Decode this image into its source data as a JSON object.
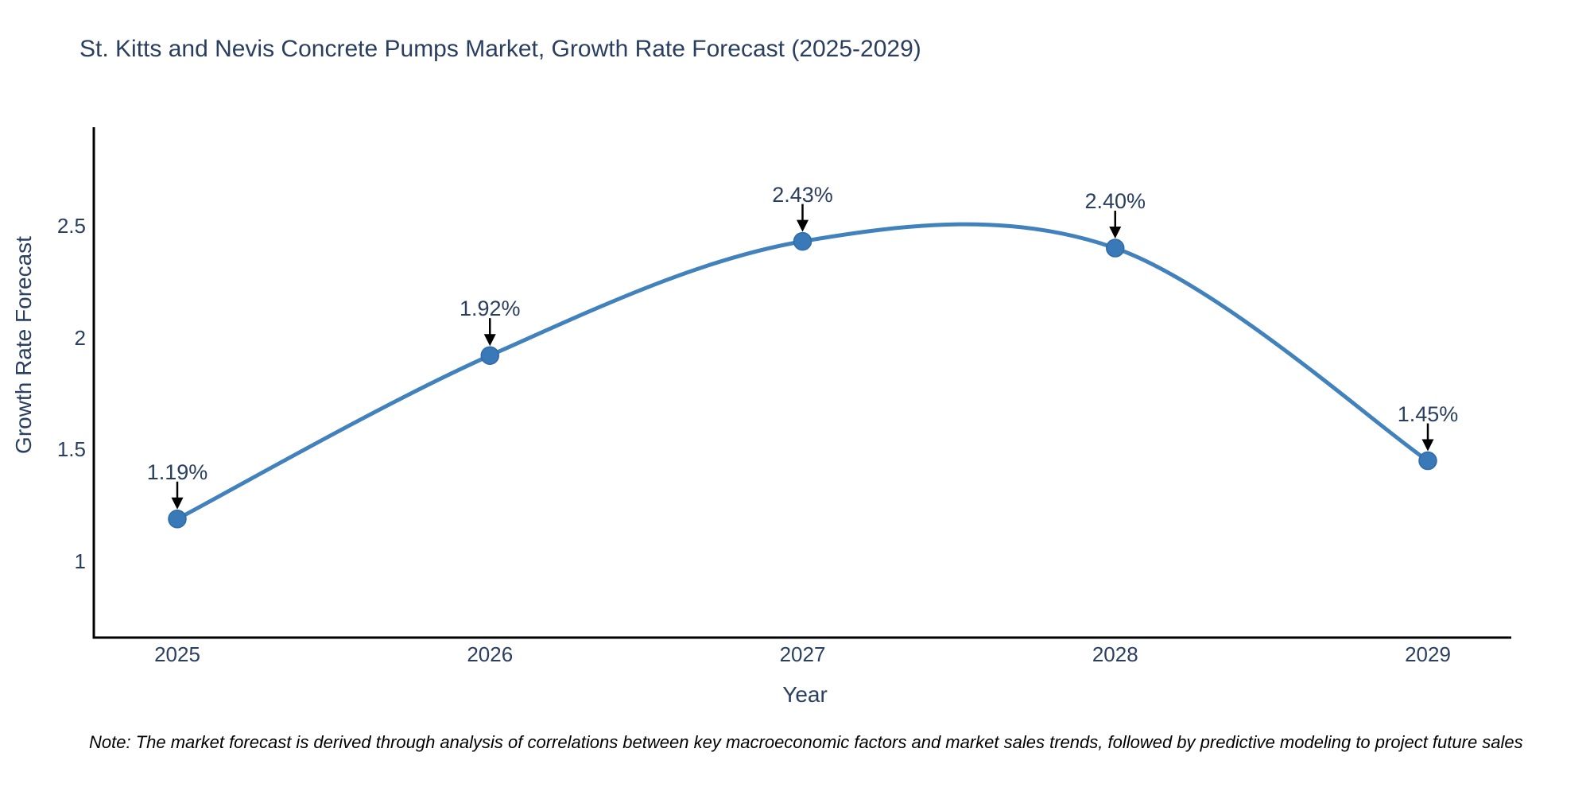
{
  "chart_data": {
    "type": "line",
    "title": "St. Kitts and Nevis Concrete Pumps Market, Growth Rate Forecast (2025-2029)",
    "xlabel": "Year",
    "ylabel": "Growth Rate Forecast",
    "x": [
      "2025",
      "2026",
      "2027",
      "2028",
      "2029"
    ],
    "values": [
      1.19,
      1.92,
      2.43,
      2.4,
      1.45
    ],
    "point_labels": [
      "1.19%",
      "1.92%",
      "2.43%",
      "2.40%",
      "1.45%"
    ],
    "yticks": [
      "1",
      "1.5",
      "2",
      "2.5"
    ],
    "ytick_values": [
      1,
      1.5,
      2,
      2.5
    ],
    "ylim": [
      0.66,
      2.94
    ],
    "line_shape": "spline",
    "grid": false,
    "legend": "none",
    "colors": {
      "line": "#4182bd",
      "marker": "#3a79b8",
      "marker_edge": "#2e6ba8",
      "axis": "#000000",
      "text": "#2a3f5f",
      "arrow": "#000000"
    },
    "note": "Note: The market forecast is derived through analysis of correlations between key macroeconomic factors and market sales trends, followed by predictive modeling to project future sales"
  }
}
